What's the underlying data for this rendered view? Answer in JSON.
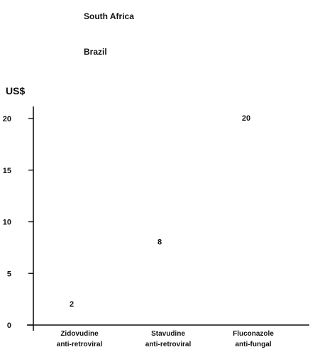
{
  "chart_data": {
    "type": "bar",
    "unit_label": "US$",
    "legend": [
      {
        "label": "South Africa"
      },
      {
        "label": "Brazil"
      }
    ],
    "categories": [
      {
        "name": "Zidovudine",
        "sub": "anti-retroviral"
      },
      {
        "name": "Stavudine",
        "sub": "anti-retroviral"
      },
      {
        "name": "Fluconazole",
        "sub": "anti-fungal"
      }
    ],
    "value_labels": [
      "2",
      "8",
      "20"
    ],
    "values": [
      2,
      8,
      20
    ],
    "yticks": [
      "0",
      "5",
      "10",
      "15",
      "20"
    ],
    "ylim": [
      0,
      20
    ],
    "grid": false,
    "legend_position": "top-left"
  }
}
